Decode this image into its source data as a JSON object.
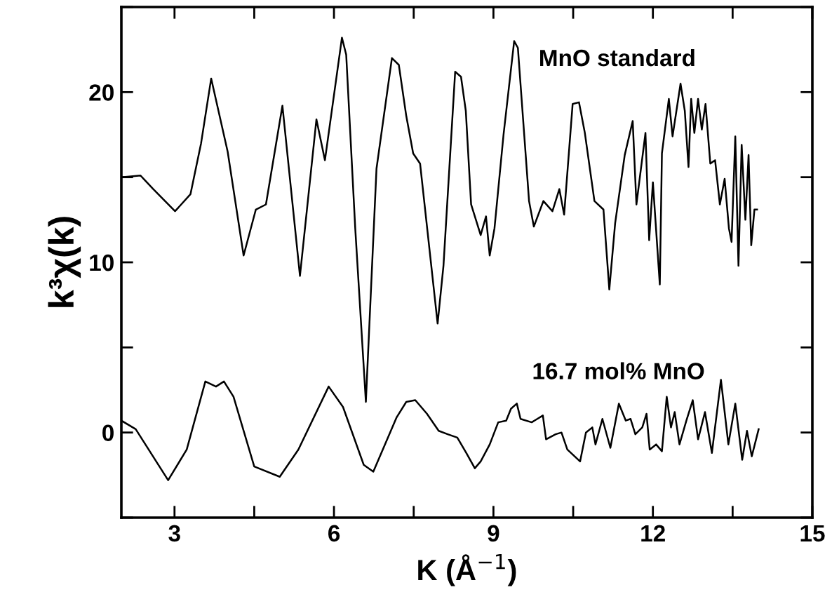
{
  "chart_data": {
    "type": "line",
    "xlabel": "K (Å$^{−1}$)",
    "ylabel": "k³χ(k)",
    "xlim": [
      2,
      15
    ],
    "ylim": [
      -5,
      25
    ],
    "xticks": [
      3,
      {
        "value": 4.5,
        "label": null
      },
      6,
      {
        "value": 7.5,
        "label": null
      },
      9,
      {
        "value": 10.5,
        "label": null
      },
      12,
      {
        "value": 13.5,
        "label": null
      },
      15
    ],
    "yticks": [
      {
        "value": -5,
        "label": null
      },
      0,
      {
        "value": 5,
        "label": null
      },
      10,
      {
        "value": 15,
        "label": null
      },
      20,
      {
        "value": 25,
        "label": null
      }
    ],
    "grid": false,
    "legend": false,
    "marker": "none",
    "line_style": "solid",
    "series": [
      {
        "name": "MnO standard",
        "color": "#000000",
        "x": [
          2.0,
          2.36,
          2.6,
          3.01,
          3.3,
          3.5,
          3.69,
          4.0,
          4.3,
          4.53,
          4.72,
          5.03,
          5.36,
          5.67,
          5.83,
          6.15,
          6.23,
          6.4,
          6.6,
          6.8,
          7.09,
          7.22,
          7.36,
          7.49,
          7.62,
          7.95,
          8.06,
          8.28,
          8.39,
          8.48,
          8.58,
          8.76,
          8.86,
          8.93,
          9.02,
          9.19,
          9.39,
          9.46,
          9.67,
          9.76,
          9.94,
          10.11,
          10.24,
          10.33,
          10.49,
          10.61,
          10.72,
          10.9,
          11.07,
          11.18,
          11.29,
          11.47,
          11.62,
          11.69,
          11.86,
          11.93,
          12.0,
          12.13,
          12.17,
          12.3,
          12.37,
          12.52,
          12.6,
          12.67,
          12.72,
          12.78,
          12.85,
          12.92,
          12.99,
          13.08,
          13.17,
          13.26,
          13.35,
          13.43,
          13.48,
          13.55,
          13.61,
          13.67,
          13.74,
          13.8,
          13.85,
          13.91,
          13.96
        ],
        "values": [
          15.0,
          15.1,
          14.3,
          13.0,
          14.0,
          17.0,
          20.8,
          16.5,
          10.4,
          13.1,
          13.4,
          19.2,
          9.2,
          18.4,
          16.0,
          23.2,
          22.2,
          12.0,
          1.8,
          15.5,
          22.0,
          21.6,
          18.6,
          16.4,
          15.8,
          6.4,
          9.8,
          21.2,
          20.9,
          18.9,
          13.4,
          11.6,
          12.7,
          10.4,
          12.0,
          17.5,
          23.0,
          22.6,
          13.6,
          12.1,
          13.6,
          13.0,
          14.3,
          12.8,
          19.3,
          19.4,
          17.6,
          13.6,
          13.1,
          8.4,
          12.3,
          16.3,
          18.3,
          13.4,
          17.6,
          11.3,
          14.7,
          8.7,
          16.4,
          19.6,
          17.4,
          20.5,
          18.9,
          15.6,
          19.6,
          17.6,
          19.6,
          17.8,
          19.3,
          15.8,
          16.0,
          13.4,
          14.9,
          12.0,
          11.2,
          17.4,
          9.8,
          16.9,
          12.5,
          16.3,
          11.0,
          13.1,
          13.1
        ]
      },
      {
        "name": "16.7 mol% MnO",
        "color": "#000000",
        "x": [
          2.0,
          2.27,
          2.88,
          3.23,
          3.58,
          3.78,
          3.93,
          4.11,
          4.5,
          4.98,
          5.33,
          5.9,
          6.17,
          6.56,
          6.74,
          7.18,
          7.36,
          7.53,
          7.75,
          7.97,
          8.14,
          8.32,
          8.49,
          8.65,
          8.76,
          8.93,
          9.09,
          9.24,
          9.33,
          9.44,
          9.51,
          9.72,
          9.93,
          9.99,
          10.17,
          10.28,
          10.39,
          10.63,
          10.74,
          10.86,
          10.92,
          11.05,
          11.2,
          11.36,
          11.49,
          11.58,
          11.67,
          11.8,
          11.88,
          11.94,
          12.06,
          12.17,
          12.26,
          12.34,
          12.41,
          12.5,
          12.63,
          12.75,
          12.85,
          12.98,
          13.11,
          13.28,
          13.42,
          13.55,
          13.68,
          13.77,
          13.86,
          13.99
        ],
        "values": [
          0.7,
          0.2,
          -2.8,
          -1.0,
          3.0,
          2.7,
          3.0,
          2.1,
          -2.0,
          -2.6,
          -1.0,
          2.7,
          1.5,
          -1.9,
          -2.3,
          0.9,
          1.8,
          1.9,
          1.1,
          0.1,
          -0.1,
          -0.3,
          -1.2,
          -2.1,
          -1.7,
          -0.7,
          0.6,
          0.7,
          1.4,
          1.7,
          0.8,
          0.6,
          1.0,
          -0.4,
          -0.1,
          0.0,
          -1.0,
          -1.7,
          0.0,
          0.3,
          -0.7,
          0.8,
          -0.9,
          1.7,
          0.7,
          0.8,
          -0.1,
          0.3,
          1.1,
          -1.0,
          -0.7,
          -1.1,
          2.1,
          0.3,
          1.2,
          -0.7,
          0.7,
          1.9,
          -0.4,
          1.2,
          -1.2,
          3.1,
          -0.7,
          1.7,
          -1.6,
          0.1,
          -1.4,
          0.2
        ]
      }
    ]
  }
}
